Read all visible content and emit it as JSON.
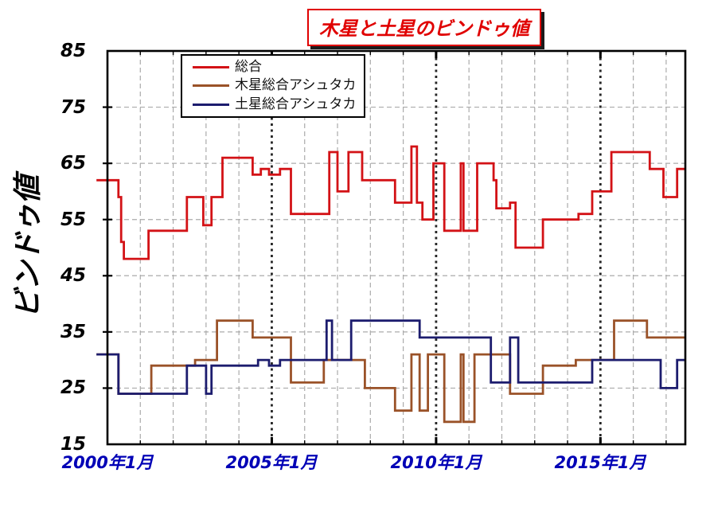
{
  "chart_title": "木星と土星のビンドゥ値",
  "y_axis": {
    "title": "ビンドゥ値",
    "tick_labels": [
      "85",
      "75",
      "65",
      "55",
      "45",
      "35",
      "25",
      "15"
    ],
    "min": 15,
    "max": 85
  },
  "x_axis": {
    "tick_labels": [
      "2000年1月",
      "2005年1月",
      "2010年1月",
      "2015年1月"
    ]
  },
  "chart_data": {
    "type": "line",
    "line_style": "step-after",
    "title": "木星と土星のビンドゥ値",
    "ylabel": "ビンドゥ値",
    "ylim": [
      15,
      85
    ],
    "ytick_interval": 10,
    "grid": true,
    "legend_position": "top-left",
    "x_axis_unit": "months since 2000-01",
    "xlim_months": [
      -4,
      211
    ],
    "xtick_months": [
      0,
      60,
      120,
      180
    ],
    "xtick_labels": [
      "2000年1月",
      "2005年1月",
      "2010年1月",
      "2015年1月"
    ],
    "year_grid_interval_months": 12,
    "major_grid_months": [
      60,
      120,
      180
    ],
    "end_month": 211,
    "series": [
      {
        "name": "総合",
        "color": "#d31216",
        "steps": [
          [
            -4,
            62
          ],
          [
            4,
            59
          ],
          [
            5,
            51
          ],
          [
            6,
            48
          ],
          [
            15,
            53
          ],
          [
            29,
            59
          ],
          [
            35,
            54
          ],
          [
            38,
            59
          ],
          [
            42,
            66
          ],
          [
            53,
            63
          ],
          [
            56,
            64
          ],
          [
            59,
            63
          ],
          [
            63,
            64
          ],
          [
            67,
            56
          ],
          [
            81,
            67
          ],
          [
            84,
            60
          ],
          [
            88,
            67
          ],
          [
            93,
            62
          ],
          [
            105,
            58
          ],
          [
            111,
            68
          ],
          [
            113,
            58
          ],
          [
            115,
            55
          ],
          [
            119,
            65
          ],
          [
            123,
            53
          ],
          [
            129,
            65
          ],
          [
            130,
            53
          ],
          [
            135,
            65
          ],
          [
            141,
            62
          ],
          [
            142,
            57
          ],
          [
            147,
            58
          ],
          [
            149,
            50
          ],
          [
            159,
            55
          ],
          [
            172,
            56
          ],
          [
            177,
            60
          ],
          [
            184,
            67
          ],
          [
            198,
            64
          ],
          [
            203,
            59
          ],
          [
            208,
            64
          ]
        ]
      },
      {
        "name": "木星総合アシュタカ",
        "color": "#9a5228",
        "steps": [
          [
            -4,
            31
          ],
          [
            4,
            24
          ],
          [
            16,
            29
          ],
          [
            32,
            30
          ],
          [
            40,
            37
          ],
          [
            53,
            34
          ],
          [
            67,
            26
          ],
          [
            79,
            30
          ],
          [
            94,
            25
          ],
          [
            105,
            21
          ],
          [
            111,
            31
          ],
          [
            114,
            21
          ],
          [
            117,
            31
          ],
          [
            123,
            19
          ],
          [
            129,
            31
          ],
          [
            130,
            19
          ],
          [
            134,
            31
          ],
          [
            147,
            24
          ],
          [
            159,
            29
          ],
          [
            171,
            30
          ],
          [
            185,
            37
          ],
          [
            197,
            34
          ]
        ]
      },
      {
        "name": "土星総合アシュタカ",
        "color": "#1c1c6e",
        "steps": [
          [
            -4,
            31
          ],
          [
            4,
            24
          ],
          [
            29,
            29
          ],
          [
            36,
            24
          ],
          [
            38,
            29
          ],
          [
            55,
            30
          ],
          [
            59,
            29
          ],
          [
            63,
            30
          ],
          [
            80,
            37
          ],
          [
            82,
            30
          ],
          [
            89,
            37
          ],
          [
            114,
            34
          ],
          [
            140,
            26
          ],
          [
            147,
            34
          ],
          [
            150,
            26
          ],
          [
            177,
            30
          ],
          [
            202,
            25
          ],
          [
            208,
            30
          ]
        ]
      }
    ]
  }
}
